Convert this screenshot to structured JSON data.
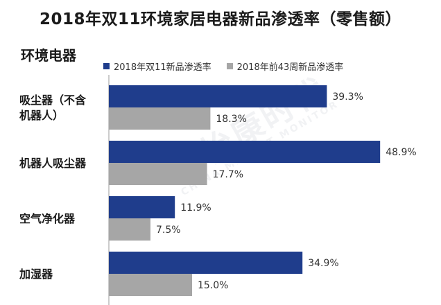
{
  "title": "2018年双11环境家居电器新品渗透率（零售额）",
  "subtitle": "环境电器",
  "watermark": {
    "cn": "中怡康时代",
    "en": "CHINA MARKET MONITOR"
  },
  "colors": {
    "series_1": "#1f3d8c",
    "series_2": "#a6a6a6",
    "axis": "#999999"
  },
  "chart_data": {
    "type": "bar",
    "orientation": "horizontal",
    "categories": [
      [
        "吸尘器（不含",
        "机器人）"
      ],
      [
        "机器人吸尘器"
      ],
      [
        "空气净化器"
      ],
      [
        "加湿器"
      ]
    ],
    "series": [
      {
        "name": "2018年双11新品渗透率",
        "values": [
          39.3,
          48.9,
          11.9,
          34.9
        ],
        "labels": [
          "39.3%",
          "48.9%",
          "11.9%",
          "34.9%"
        ]
      },
      {
        "name": "2018年前43周新品渗透率",
        "values": [
          18.3,
          17.7,
          7.5,
          15.0
        ],
        "labels": [
          "18.3%",
          "17.7%",
          "7.5%",
          "15.0%"
        ]
      }
    ],
    "xlim": [
      0,
      50
    ],
    "legend": "top",
    "grid": false,
    "unit": "%"
  }
}
